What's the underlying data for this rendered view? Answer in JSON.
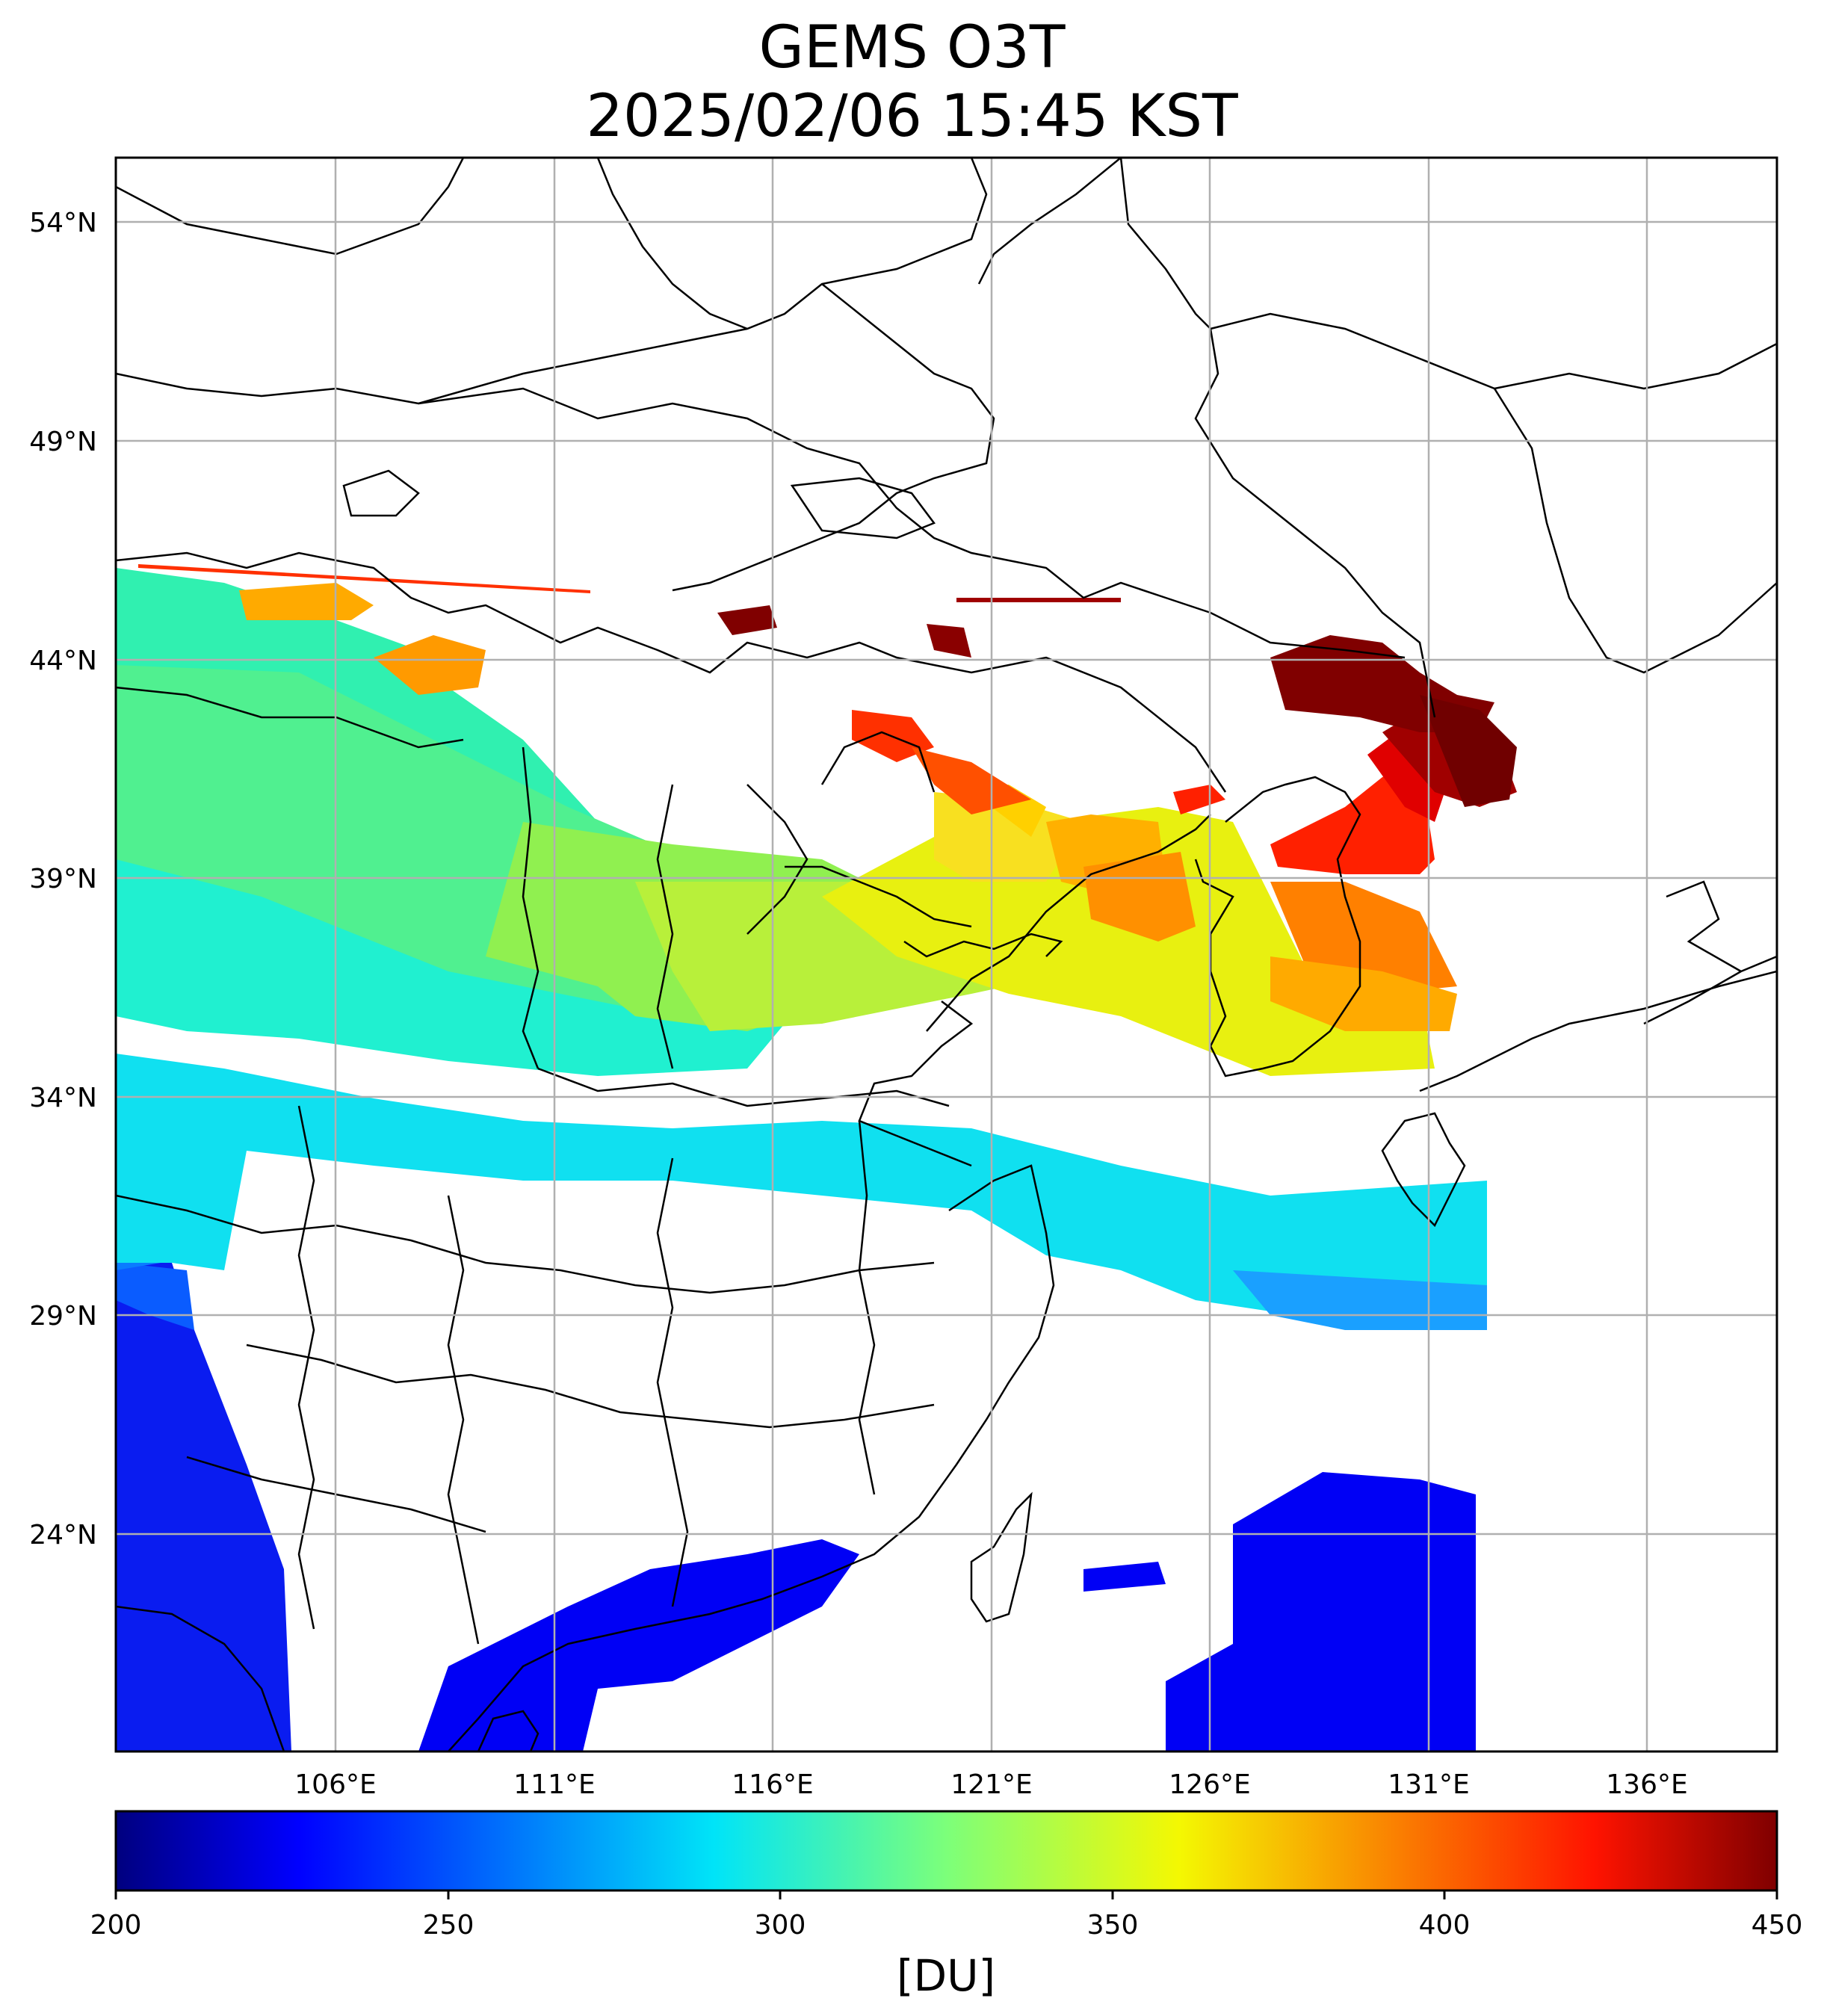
{
  "title": "GEMS O3T",
  "subtitle": "2025/02/06 15:45 KST",
  "map": {
    "lon_range": [
      101,
      139
    ],
    "lat_range": [
      19.5,
      55.5
    ],
    "lon_ticks": [
      106,
      111,
      116,
      121,
      126,
      131,
      136
    ],
    "lat_ticks": [
      54,
      49,
      44,
      39,
      34,
      29,
      24
    ],
    "lon_tick_labels": [
      "106°E",
      "111°E",
      "116°E",
      "121°E",
      "126°E",
      "131°E",
      "136°E"
    ],
    "lat_tick_labels": [
      "54°N",
      "49°N",
      "44°N",
      "39°N",
      "34°N",
      "29°N",
      "24°N"
    ],
    "grid": true,
    "colormap": "jet",
    "colors": {
      "blue": "#0000ff",
      "cyan": "#00e5ee",
      "green": "#66ff99",
      "yellow": "#ffff00",
      "orange": "#ff8000",
      "red": "#ff0000",
      "darkred": "#800000"
    }
  },
  "colorbar": {
    "min": 200,
    "max": 450,
    "tick_labels": [
      "200",
      "250",
      "300",
      "350",
      "400",
      "450"
    ],
    "unit_label": "[DU]"
  }
}
